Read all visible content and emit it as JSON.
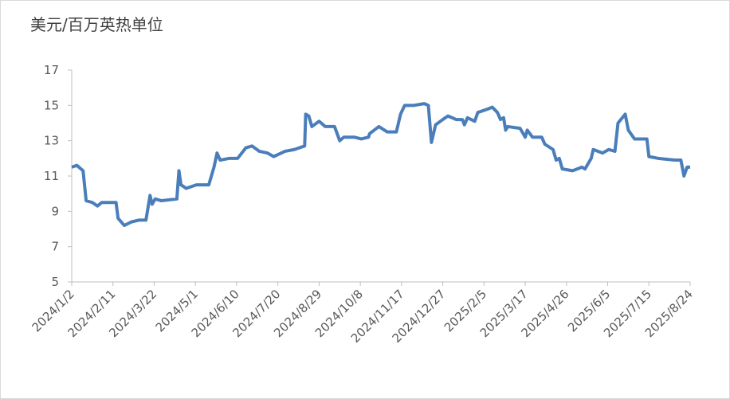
{
  "chart_data": {
    "type": "line",
    "y_axis_title": "美元/百万英热单位",
    "x": [
      "2024/1/2",
      "2024/1/7",
      "2024/1/13",
      "2024/1/16",
      "2024/1/22",
      "2024/1/27",
      "2024/1/31",
      "2024/2/14",
      "2024/2/16",
      "2024/2/22",
      "2024/2/29",
      "2024/3/7",
      "2024/3/14",
      "2024/3/18",
      "2024/3/20",
      "2024/3/23",
      "2024/3/29",
      "2024/4/13",
      "2024/4/15",
      "2024/4/17",
      "2024/4/22",
      "2024/5/2",
      "2024/5/14",
      "2024/5/19",
      "2024/5/22",
      "2024/5/25",
      "2024/6/3",
      "2024/6/11",
      "2024/6/19",
      "2024/6/25",
      "2024/7/2",
      "2024/7/10",
      "2024/7/16",
      "2024/7/27",
      "2024/8/5",
      "2024/8/15",
      "2024/8/16",
      "2024/8/19",
      "2024/8/22",
      "2024/8/29",
      "2024/9/4",
      "2024/9/13",
      "2024/9/18",
      "2024/9/22",
      "2024/10/2",
      "2024/10/9",
      "2024/10/16",
      "2024/10/17",
      "2024/10/26",
      "2024/11/3",
      "2024/11/12",
      "2024/11/16",
      "2024/11/20",
      "2024/11/29",
      "2024/12/9",
      "2024/12/13",
      "2024/12/16",
      "2024/12/20",
      "2024/12/27",
      "2025/1/1",
      "2025/1/9",
      "2025/1/15",
      "2025/1/17",
      "2025/1/20",
      "2025/1/27",
      "2025/1/30",
      "2025/2/9",
      "2025/2/13",
      "2025/2/18",
      "2025/2/21",
      "2025/2/24",
      "2025/2/26",
      "2025/2/28",
      "2025/3/12",
      "2025/3/17",
      "2025/3/19",
      "2025/3/24",
      "2025/4/2",
      "2025/4/5",
      "2025/4/13",
      "2025/4/16",
      "2025/4/19",
      "2025/4/22",
      "2025/5/2",
      "2025/5/11",
      "2025/5/14",
      "2025/5/20",
      "2025/5/22",
      "2025/5/31",
      "2025/6/6",
      "2025/6/12",
      "2025/6/15",
      "2025/6/22",
      "2025/6/25",
      "2025/7/1",
      "2025/7/13",
      "2025/7/15",
      "2025/7/24",
      "2025/8/9",
      "2025/8/15",
      "2025/8/18",
      "2025/8/21",
      "2025/8/24"
    ],
    "series": [
      {
        "color": "#4a7ebb",
        "values": [
          11.5,
          11.6,
          11.3,
          9.6,
          9.5,
          9.3,
          9.5,
          9.5,
          8.6,
          8.2,
          8.4,
          8.5,
          8.5,
          9.9,
          9.4,
          9.7,
          9.6,
          9.7,
          11.3,
          10.5,
          10.3,
          10.5,
          10.5,
          11.5,
          12.3,
          11.9,
          12.0,
          12.0,
          12.6,
          12.7,
          12.4,
          12.3,
          12.1,
          12.4,
          12.5,
          12.7,
          14.5,
          14.4,
          13.8,
          14.1,
          13.8,
          13.8,
          13.0,
          13.2,
          13.2,
          13.1,
          13.2,
          13.4,
          13.8,
          13.5,
          13.5,
          14.5,
          15.0,
          15.0,
          15.1,
          15.0,
          12.9,
          13.9,
          14.2,
          14.4,
          14.2,
          14.2,
          13.9,
          14.3,
          14.1,
          14.6,
          14.8,
          14.9,
          14.6,
          14.2,
          14.3,
          13.6,
          13.8,
          13.7,
          13.2,
          13.6,
          13.2,
          13.2,
          12.8,
          12.5,
          11.9,
          12.0,
          11.4,
          11.3,
          11.5,
          11.4,
          12.0,
          12.5,
          12.3,
          12.5,
          12.4,
          14.0,
          14.5,
          13.6,
          13.1,
          13.1,
          12.1,
          12.0,
          11.9,
          11.9,
          11.0,
          11.5,
          11.5
        ]
      }
    ],
    "xlim": [
      "2024/1/2",
      "2025/8/24"
    ],
    "xticks": [
      "2024/1/2",
      "2024/2/11",
      "2024/3/22",
      "2024/5/1",
      "2024/6/10",
      "2024/7/20",
      "2024/8/29",
      "2024/10/8",
      "2024/11/17",
      "2024/12/27",
      "2025/2/5",
      "2025/3/17",
      "2025/4/26",
      "2025/6/5",
      "2025/7/15",
      "2025/8/24"
    ],
    "ylim": [
      5,
      17
    ],
    "yticks": [
      5,
      7,
      9,
      11,
      13,
      15,
      17
    ],
    "grid": false
  }
}
